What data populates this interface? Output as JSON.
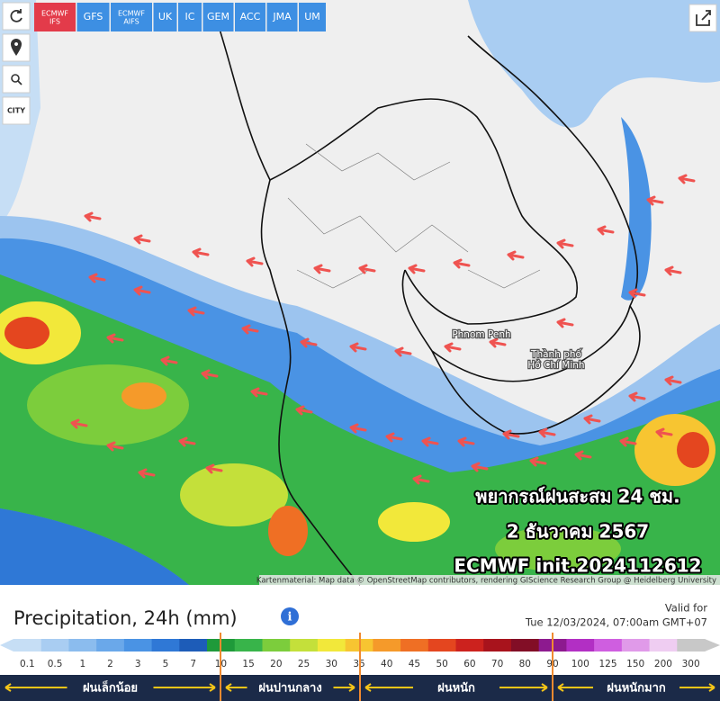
{
  "toolbar": {
    "tabs": [
      {
        "lines": [
          "ECMWF",
          "IFS"
        ]
      },
      {
        "lines": [
          "GFS"
        ]
      },
      {
        "lines": [
          "ECMWF",
          "AIFS"
        ]
      },
      {
        "lines": [
          "UK"
        ]
      },
      {
        "lines": [
          "IC"
        ]
      },
      {
        "lines": [
          "GEM"
        ]
      },
      {
        "lines": [
          "ACC"
        ]
      },
      {
        "lines": [
          "JMA"
        ]
      },
      {
        "lines": [
          "UM"
        ]
      }
    ],
    "active_tab": 0
  },
  "controls": {
    "city_button": "CITY"
  },
  "map": {
    "places": [
      {
        "lines": [
          "Phnom Penh"
        ]
      },
      {
        "lines": [
          "Thành phố",
          "Hồ Chí Minh"
        ]
      }
    ],
    "overlay": [
      "พยากรณ์ฝนสะสม 24 ชม.",
      "2 ธันวาคม 2567",
      "ECMWF init.2024112612"
    ],
    "attribution": "Kartenmaterial: Map data © OpenStreetMap contributors, rendering GIScience Research Group @ Heidelberg University"
  },
  "legend": {
    "title": "Precipitation, 24h (mm)",
    "valid_label": "Valid for",
    "valid_time": "Tue 12/03/2024, 07:00am GMT+07",
    "scale": [
      {
        "value": 0.1,
        "color": "#c6def5"
      },
      {
        "value": 0.5,
        "color": "#a9cdf2"
      },
      {
        "value": 1,
        "color": "#8bbcee"
      },
      {
        "value": 2,
        "color": "#6aa8ea"
      },
      {
        "value": 3,
        "color": "#4a93e4"
      },
      {
        "value": 5,
        "color": "#2f78d6"
      },
      {
        "value": 7,
        "color": "#1d5cb8"
      },
      {
        "value": 10,
        "color": "#1f9a3a"
      },
      {
        "value": 15,
        "color": "#38b44a"
      },
      {
        "value": 20,
        "color": "#7ccd3c"
      },
      {
        "value": 25,
        "color": "#c4e03a"
      },
      {
        "value": 30,
        "color": "#f2e83a"
      },
      {
        "value": 35,
        "color": "#f7c531"
      },
      {
        "value": 40,
        "color": "#f59a2a"
      },
      {
        "value": 45,
        "color": "#ef6f24"
      },
      {
        "value": 50,
        "color": "#e4461f"
      },
      {
        "value": 60,
        "color": "#cc221e"
      },
      {
        "value": 70,
        "color": "#a8131c"
      },
      {
        "value": 80,
        "color": "#820e26"
      },
      {
        "value": 90,
        "color": "#8d1a8f"
      },
      {
        "value": 100,
        "color": "#b22fc4"
      },
      {
        "value": 125,
        "color": "#cf5ee0"
      },
      {
        "value": 150,
        "color": "#e09ae9"
      },
      {
        "value": 200,
        "color": "#efcdf2"
      },
      {
        "value": 300,
        "color": "#c8c8c8"
      }
    ],
    "bands": [
      "ฝนเล็กน้อย",
      "ฝนปานกลาง",
      "ฝนหนัก",
      "ฝนหนักมาก"
    ]
  }
}
